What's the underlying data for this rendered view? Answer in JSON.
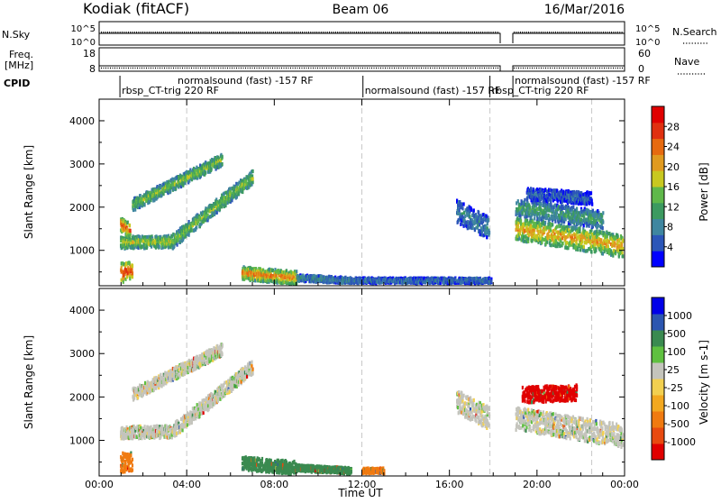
{
  "header": {
    "radar": "Kodiak (fitACF)",
    "beam": "Beam 06",
    "date": "16/Mar/2016"
  },
  "top_panel": {
    "left_label": "N.Sky",
    "right_label": "N.Search",
    "left_ticks": [
      "10^5",
      "10^0"
    ],
    "right_ticks": [
      "10^5",
      "10^0"
    ]
  },
  "freq_panel": {
    "left_label_1": "Freq.",
    "left_label_2": "[MHz]",
    "right_label": "Nave",
    "left_ticks": [
      "18",
      "8"
    ],
    "right_ticks": [
      "60",
      "0"
    ]
  },
  "cpid": {
    "label": "CPID",
    "segments": [
      {
        "text": "rbsp_CT-trig 220 RF",
        "start_h": 0.95,
        "row": 1
      },
      {
        "text": "normalsound (fast) -157 RF",
        "start_h": 3.5,
        "row": 0
      },
      {
        "text": "normalsound (fast) -157 RF",
        "start_h": 12.05,
        "row": 1
      },
      {
        "text": "rbsp_CT-trig 220 RF",
        "start_h": 17.85,
        "row": 1
      },
      {
        "text": "normalsound (fast) -157 RF",
        "start_h": 18.9,
        "row": 0
      }
    ],
    "markers_h": [
      0.95,
      12.05,
      17.85,
      18.9
    ]
  },
  "xaxis": {
    "label": "Time UT",
    "ticks": [
      "00:00",
      "04:00",
      "08:00",
      "12:00",
      "16:00",
      "20:00",
      "00:00"
    ]
  },
  "power_panel": {
    "ylabel": "Slant Range [km]",
    "yticks": [
      "1000",
      "2000",
      "3000",
      "4000"
    ],
    "colorbar_label": "Power [dB]",
    "colorbar_ticks": [
      "4",
      "8",
      "12",
      "16",
      "20",
      "24",
      "28"
    ]
  },
  "velocity_panel": {
    "ylabel": "Slant Range [km]",
    "yticks": [
      "1000",
      "2000",
      "3000",
      "4000"
    ],
    "colorbar_label": "Velocity [m s-1]",
    "colorbar_ticks": [
      "-1000",
      "-500",
      "-100",
      "-25",
      "25",
      "100",
      "500",
      "1000"
    ]
  },
  "colors": {
    "power_scale": [
      "#0000ff",
      "#2c56b8",
      "#3f86a0",
      "#3c9a60",
      "#5fb84a",
      "#c8c820",
      "#e09a20",
      "#e66a10",
      "#e03010",
      "#e00000"
    ],
    "velocity_scale": [
      "#e00000",
      "#e84a10",
      "#f07a10",
      "#f2a820",
      "#f2d050",
      "#c4c4bc",
      "#5fc040",
      "#3a8a50",
      "#2c56b0",
      "#0000e8"
    ],
    "grid": "#c8c8c8"
  },
  "chart_data": [
    {
      "type": "heatmap",
      "title": "Beam 06",
      "xlabel": "Time UT",
      "ylabel": "Slant Range [km]",
      "xlim": [
        0,
        24
      ],
      "ylim": [
        180,
        4500
      ],
      "colorbar": {
        "label": "Power [dB]",
        "range": [
          0,
          32
        ]
      },
      "features": [
        {
          "t0": 0.95,
          "t1": 3.3,
          "r0": 1180,
          "r1": 1200,
          "value": 18,
          "thick": 140
        },
        {
          "t0": 3.3,
          "t1": 7.0,
          "r0": 1200,
          "r1": 2700,
          "value": 16,
          "thick": 160
        },
        {
          "t0": 1.5,
          "t1": 5.6,
          "r0": 2050,
          "r1": 3100,
          "value": 16,
          "thick": 140
        },
        {
          "t0": 0.95,
          "t1": 1.4,
          "r0": 1600,
          "r1": 1450,
          "value": 26,
          "thick": 160
        },
        {
          "t0": 0.95,
          "t1": 1.5,
          "r0": 480,
          "r1": 520,
          "value": 28,
          "thick": 220
        },
        {
          "t0": 6.5,
          "t1": 9.0,
          "r0": 470,
          "r1": 360,
          "value": 24,
          "thick": 150
        },
        {
          "t0": 9.0,
          "t1": 11.5,
          "r0": 360,
          "r1": 300,
          "value": 10,
          "thick": 70
        },
        {
          "t0": 11.5,
          "t1": 17.9,
          "r0": 300,
          "r1": 300,
          "value": 8,
          "thick": 60
        },
        {
          "t0": 16.3,
          "t1": 17.8,
          "r0": 1900,
          "r1": 1500,
          "value": 8,
          "thick": 260
        },
        {
          "t0": 19.0,
          "t1": 23.9,
          "r0": 1500,
          "r1": 1100,
          "value": 22,
          "thick": 260
        },
        {
          "t0": 19.0,
          "t1": 23.0,
          "r0": 2000,
          "r1": 1700,
          "value": 12,
          "thick": 200
        },
        {
          "t0": 19.5,
          "t1": 22.5,
          "r0": 2300,
          "r1": 2200,
          "value": 6,
          "thick": 140
        }
      ]
    },
    {
      "type": "heatmap",
      "title": "",
      "xlabel": "Time UT",
      "ylabel": "Slant Range [km]",
      "xlim": [
        0,
        24
      ],
      "ylim": [
        180,
        4500
      ],
      "colorbar": {
        "label": "Velocity [m s-1]",
        "range": [
          -1000,
          1000
        ]
      },
      "features": [
        {
          "t0": 0.95,
          "t1": 3.3,
          "r0": 1180,
          "r1": 1200,
          "value": 0,
          "thick": 140
        },
        {
          "t0": 3.3,
          "t1": 7.0,
          "r0": 1200,
          "r1": 2700,
          "value": 0,
          "thick": 160
        },
        {
          "t0": 1.5,
          "t1": 5.6,
          "r0": 2050,
          "r1": 3100,
          "value": 0,
          "thick": 140
        },
        {
          "t0": 0.95,
          "t1": 1.5,
          "r0": 480,
          "r1": 520,
          "value": -150,
          "thick": 220
        },
        {
          "t0": 6.5,
          "t1": 9.0,
          "r0": 470,
          "r1": 360,
          "value": 150,
          "thick": 150
        },
        {
          "t0": 9.0,
          "t1": 11.5,
          "r0": 360,
          "r1": 300,
          "value": 150,
          "thick": 70
        },
        {
          "t0": 16.3,
          "t1": 17.8,
          "r0": 1900,
          "r1": 1500,
          "value": 0,
          "thick": 260
        },
        {
          "t0": 19.0,
          "t1": 23.9,
          "r0": 1500,
          "r1": 1100,
          "value": 0,
          "thick": 260
        },
        {
          "t0": 19.3,
          "t1": 21.8,
          "r0": 2050,
          "r1": 2100,
          "value": -800,
          "thick": 180
        },
        {
          "t0": 12.0,
          "t1": 13.0,
          "r0": 300,
          "r1": 300,
          "value": -150,
          "thick": 60
        }
      ]
    }
  ]
}
